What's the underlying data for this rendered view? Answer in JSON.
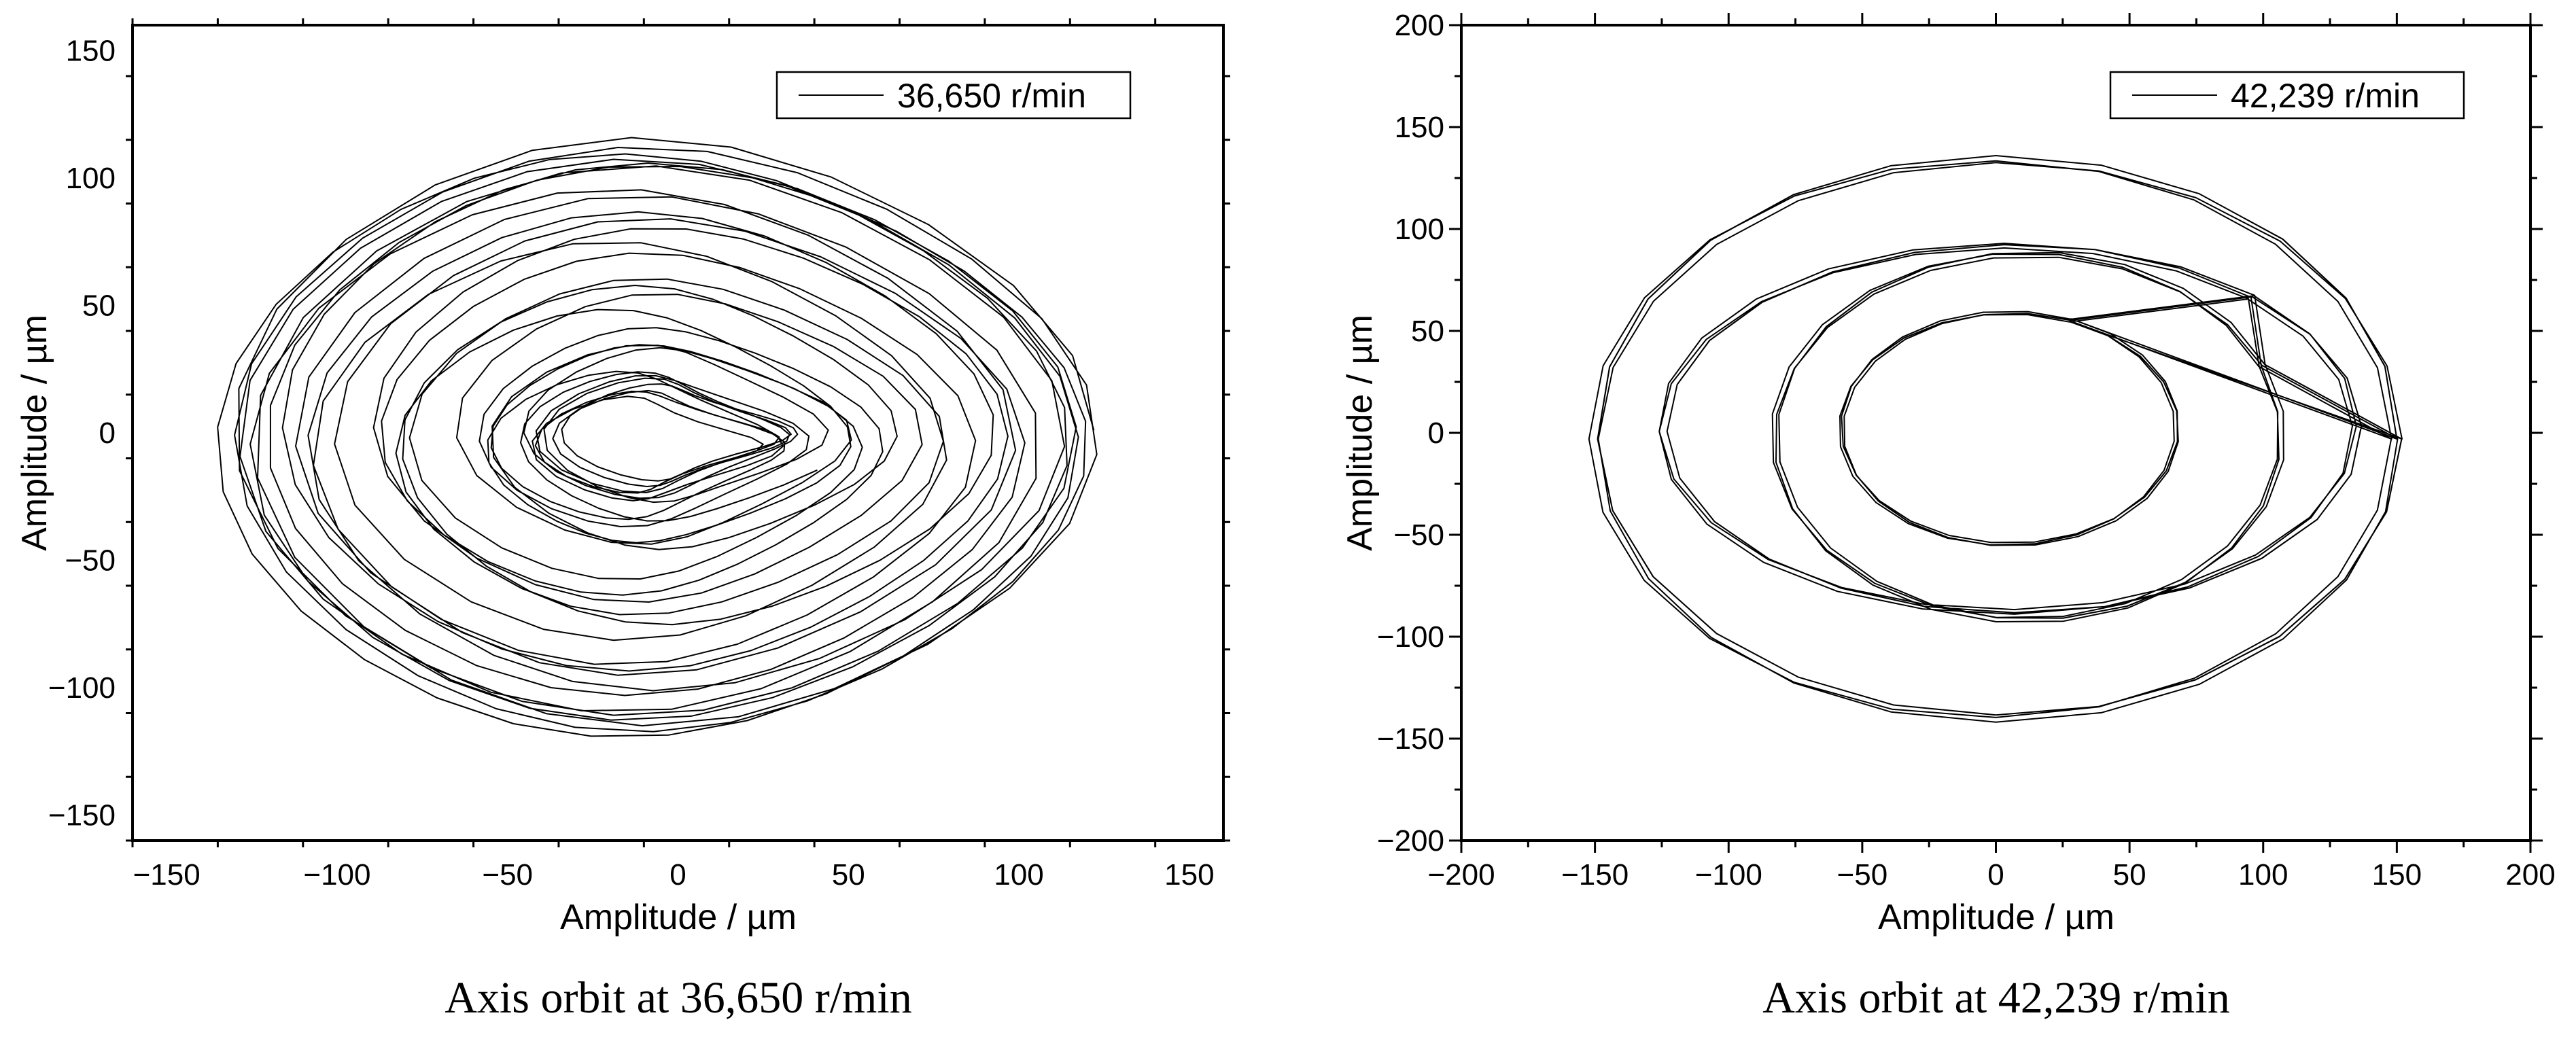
{
  "chart_data": [
    {
      "type": "line",
      "title": "",
      "caption": "Axis orbit at 36,650 r/min",
      "xlabel": "Amplitude / µm",
      "ylabel": "Amplitude / µm",
      "xlim": [
        -160,
        160
      ],
      "ylim": [
        -160,
        160
      ],
      "xticks": [
        -150,
        -100,
        -50,
        0,
        50,
        100,
        150
      ],
      "yticks": [
        -150,
        -100,
        -50,
        0,
        50,
        100,
        150
      ],
      "xtick_labels": [
        "−150",
        "−100",
        "−50",
        "0",
        "50",
        "100",
        "150"
      ],
      "ytick_labels": [
        "−150",
        "−100",
        "−50",
        "0",
        "50",
        "100",
        "150"
      ],
      "grid": false,
      "legend_position": "top-right",
      "series": [
        {
          "name": "36,650 r/min",
          "color": "#000000",
          "orbit": {
            "kind": "spiral",
            "cx": -5,
            "cy": -2,
            "rx_outer": 122,
            "ry_outer": 115,
            "rx_inner": 28,
            "ry_inner": 17,
            "turns": 30
          }
        }
      ]
    },
    {
      "type": "line",
      "title": "",
      "caption": "Axis orbit at 42,239 r/min",
      "xlabel": "Amplitude / µm",
      "ylabel": "Amplitude / µm",
      "xlim": [
        -200,
        200
      ],
      "ylim": [
        -200,
        200
      ],
      "xticks": [
        -200,
        -150,
        -100,
        -50,
        0,
        50,
        100,
        150,
        200
      ],
      "yticks": [
        -200,
        -150,
        -100,
        -50,
        0,
        50,
        100,
        150,
        200
      ],
      "xtick_labels": [
        "−200",
        "−150",
        "−100",
        "−50",
        "0",
        "50",
        "100",
        "150",
        "200"
      ],
      "ytick_labels": [
        "−200",
        "−150",
        "−100",
        "−50",
        "0",
        "50",
        "100",
        "150",
        "200"
      ],
      "grid": false,
      "legend_position": "top-right",
      "series": [
        {
          "name": "42,239 r/min",
          "color": "#000000",
          "orbit": {
            "kind": "loops",
            "loops": [
              {
                "cx": 0,
                "cy": -3,
                "rx": 150,
                "ry": 137
              },
              {
                "cx": 12,
                "cy": -2,
                "rx": 95,
                "ry": 90
              },
              {
                "cx": 5,
                "cy": 2,
                "rx": 130,
                "ry": 90
              },
              {
                "cx": 5,
                "cy": 2,
                "rx": 63,
                "ry": 57
              }
            ],
            "repeats": 4
          }
        }
      ]
    }
  ]
}
